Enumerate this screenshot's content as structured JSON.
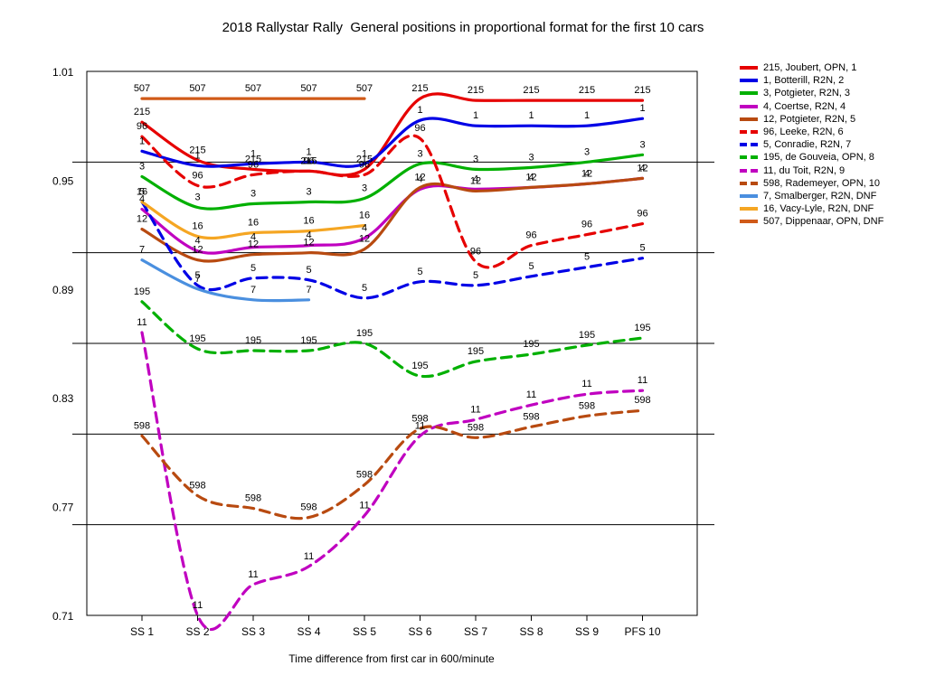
{
  "chart_data": {
    "type": "line",
    "title": "2018 Rallystar Rally  General positions in proportional format for the first 10 cars",
    "xlabel": "Time difference from first car in 600/minute",
    "ylabel": "",
    "x": [
      "SS 1",
      "SS 2",
      "SS 3",
      "SS 4",
      "SS 5",
      "SS 6",
      "SS 7",
      "SS 8",
      "SS 9",
      "PFS 10"
    ],
    "ylim": [
      0.71,
      1.01
    ],
    "yticks": [
      "0.71",
      "0.77",
      "0.83",
      "0.89",
      "0.95",
      "1.01"
    ],
    "grid": true,
    "legend_position": "right",
    "series": [
      {
        "name": "215, Joubert, OPN, 1",
        "label": "215",
        "color": "#e60000",
        "dash": false,
        "values": [
          0.982,
          0.961,
          0.956,
          0.955,
          0.956,
          0.995,
          0.994,
          0.994,
          0.994,
          0.994
        ]
      },
      {
        "name": "1, Botterill, R2N, 2",
        "label": "1",
        "color": "#0000e6",
        "dash": false,
        "values": [
          0.966,
          0.958,
          0.959,
          0.96,
          0.959,
          0.983,
          0.98,
          0.98,
          0.98,
          0.984
        ]
      },
      {
        "name": "3, Potgieter, R2N, 3",
        "label": "3",
        "color": "#00b000",
        "dash": false,
        "values": [
          0.952,
          0.935,
          0.937,
          0.938,
          0.94,
          0.959,
          0.956,
          0.957,
          0.96,
          0.964
        ]
      },
      {
        "name": "4, Coertse, R2N, 4",
        "label": "4",
        "color": "#c000c0",
        "dash": false,
        "values": [
          0.934,
          0.911,
          0.913,
          0.914,
          0.918,
          0.945,
          0.945,
          0.946,
          0.948,
          0.951
        ]
      },
      {
        "name": "12, Potgieter, R2N, 5",
        "label": "12",
        "color": "#b84a10",
        "dash": false,
        "values": [
          0.923,
          0.906,
          0.909,
          0.91,
          0.912,
          0.946,
          0.944,
          0.946,
          0.948,
          0.951
        ]
      },
      {
        "name": "96, Leeke, R2N, 6",
        "label": "96",
        "color": "#e60000",
        "dash": true,
        "values": [
          0.974,
          0.947,
          0.953,
          0.955,
          0.953,
          0.973,
          0.905,
          0.914,
          0.92,
          0.926
        ]
      },
      {
        "name": "5, Conradie, R2N, 7",
        "label": "5",
        "color": "#0000e6",
        "dash": true,
        "values": [
          0.938,
          0.892,
          0.896,
          0.895,
          0.885,
          0.894,
          0.892,
          0.897,
          0.902,
          0.907
        ]
      },
      {
        "name": "195, de Gouveia, OPN, 8",
        "label": "195",
        "color": "#00b000",
        "dash": true,
        "values": [
          0.883,
          0.857,
          0.856,
          0.856,
          0.86,
          0.842,
          0.85,
          0.854,
          0.859,
          0.863
        ]
      },
      {
        "name": "11, du Toit, R2N, 9",
        "label": "11",
        "color": "#c000c0",
        "dash": true,
        "values": [
          0.866,
          0.71,
          0.727,
          0.737,
          0.765,
          0.809,
          0.818,
          0.826,
          0.832,
          0.834
        ]
      },
      {
        "name": "598, Rademeyer, OPN, 10",
        "label": "598",
        "color": "#b84a10",
        "dash": true,
        "values": [
          0.809,
          0.776,
          0.769,
          0.764,
          0.782,
          0.813,
          0.808,
          0.814,
          0.82,
          0.823
        ]
      },
      {
        "name": "7, Smalberger, R2N, DNF",
        "label": "7",
        "color": "#4a8fdf",
        "dash": false,
        "values": [
          0.906,
          0.89,
          0.884,
          0.884,
          null,
          null,
          null,
          null,
          null,
          null
        ]
      },
      {
        "name": "16, Vacy-Lyle, R2N, DNF",
        "label": "16",
        "color": "#f5a623",
        "dash": false,
        "values": [
          0.938,
          0.919,
          0.921,
          0.922,
          0.925,
          null,
          null,
          null,
          null,
          null
        ]
      },
      {
        "name": "507, Dippenaar, OPN, DNF",
        "label": "507",
        "color": "#d05a18",
        "dash": false,
        "values": [
          0.995,
          0.995,
          0.995,
          0.995,
          0.995,
          null,
          null,
          null,
          null,
          null
        ]
      }
    ]
  }
}
